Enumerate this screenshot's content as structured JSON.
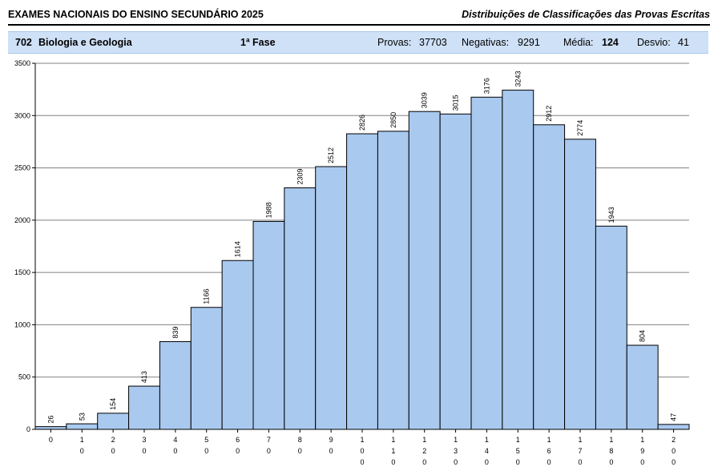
{
  "header": {
    "title": "EXAMES NACIONAIS DO ENSINO SECUNDÁRIO 2025",
    "subtitle": "Distribuições de Classificações das Provas Escritas"
  },
  "info": {
    "code": "702",
    "subject": "Biologia e Geologia",
    "phase": "1ª Fase",
    "provas_label": "Provas:",
    "provas_value": "37703",
    "negativas_label": "Negativas:",
    "negativas_value": "9291",
    "media_label": "Média:",
    "media_value": "124",
    "desvio_label": "Desvio:",
    "desvio_value": "41"
  },
  "colors": {
    "bar_fill": "#a9c9ef",
    "bar_stroke": "#000000",
    "grid": "#808080",
    "info_bg": "#cfe1f7"
  },
  "chart_data": {
    "type": "bar",
    "categories": [
      "0",
      "10",
      "20",
      "30",
      "40",
      "50",
      "60",
      "70",
      "80",
      "90",
      "100",
      "110",
      "120",
      "130",
      "140",
      "150",
      "160",
      "170",
      "180",
      "190",
      "200"
    ],
    "values": [
      26,
      53,
      154,
      413,
      839,
      1166,
      1614,
      1988,
      2309,
      2512,
      2826,
      2850,
      3039,
      3015,
      3176,
      3243,
      2912,
      2774,
      1943,
      804,
      47
    ],
    "ylim": [
      0,
      3500
    ],
    "yticks": [
      0,
      500,
      1000,
      1500,
      2000,
      2500,
      3000,
      3500
    ],
    "grid": true,
    "title": "",
    "xlabel": "",
    "ylabel": ""
  }
}
